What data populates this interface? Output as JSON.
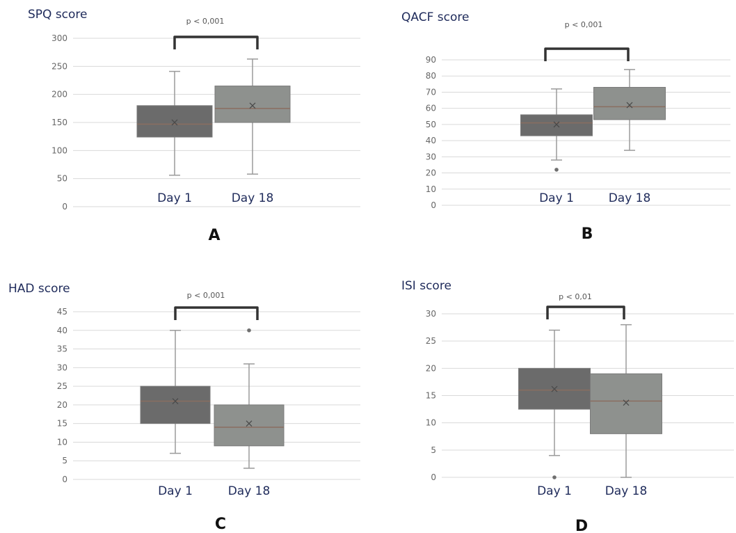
{
  "colors": {
    "day1_fill": "#6b6b6b",
    "day18_fill": "#8e918e",
    "whisker": "#9a9a9a",
    "median": "#8a6e60",
    "bracket": "#333333",
    "grid": "#d9d9d9",
    "text": "#1e2a5a"
  },
  "chart_data": [
    {
      "type": "box",
      "panel_label": "A",
      "title": "SPQ score",
      "significance": "p < 0,001",
      "y_ticks": [
        "0",
        "50",
        "100",
        "150",
        "200",
        "250",
        "300"
      ],
      "ylim": [
        0,
        300
      ],
      "categories": [
        "Day 1",
        "Day 18"
      ],
      "boxes": [
        {
          "name": "Day 1",
          "min": 56,
          "q1": 124,
          "median": 147,
          "q3": 180,
          "max": 241,
          "mean": 150,
          "outliers": []
        },
        {
          "name": "Day 18",
          "min": 58,
          "q1": 150,
          "median": 175,
          "q3": 215,
          "max": 263,
          "mean": 180,
          "outliers": []
        }
      ]
    },
    {
      "type": "box",
      "panel_label": "B",
      "title": "QACF score",
      "significance": "p < 0,001",
      "y_ticks": [
        "0",
        "10",
        "20",
        "30",
        "40",
        "50",
        "60",
        "70",
        "80",
        "90"
      ],
      "ylim": [
        0,
        90
      ],
      "categories": [
        "Day 1",
        "Day 18"
      ],
      "boxes": [
        {
          "name": "Day 1",
          "min": 28,
          "q1": 43,
          "median": 51,
          "q3": 56,
          "max": 72,
          "mean": 50,
          "outliers": [
            22
          ]
        },
        {
          "name": "Day 18",
          "min": 34,
          "q1": 53,
          "median": 61,
          "q3": 73,
          "max": 84,
          "mean": 62,
          "outliers": []
        }
      ]
    },
    {
      "type": "box",
      "panel_label": "C",
      "title": "HAD score",
      "significance": "p < 0,001",
      "y_ticks": [
        "0",
        "5",
        "10",
        "15",
        "20",
        "25",
        "30",
        "35",
        "40",
        "45"
      ],
      "ylim": [
        0,
        45
      ],
      "categories": [
        "Day 1",
        "Day 18"
      ],
      "boxes": [
        {
          "name": "Day 1",
          "min": 7,
          "q1": 15,
          "median": 21,
          "q3": 25,
          "max": 40,
          "mean": 21,
          "outliers": []
        },
        {
          "name": "Day 18",
          "min": 3,
          "q1": 9,
          "median": 14,
          "q3": 20,
          "max": 31,
          "mean": 15,
          "outliers": [
            40
          ]
        }
      ]
    },
    {
      "type": "box",
      "panel_label": "D",
      "title": "ISI score",
      "significance": "p < 0,01",
      "y_ticks": [
        "0",
        "5",
        "10",
        "15",
        "20",
        "25",
        "30"
      ],
      "ylim": [
        0,
        30
      ],
      "categories": [
        "Day 1",
        "Day 18"
      ],
      "boxes": [
        {
          "name": "Day 1",
          "min": 4,
          "q1": 12.5,
          "median": 16,
          "q3": 20,
          "max": 27,
          "mean": 16.2,
          "outliers": [
            0
          ]
        },
        {
          "name": "Day 18",
          "min": 0,
          "q1": 8,
          "median": 14,
          "q3": 19,
          "max": 28,
          "mean": 13.7,
          "outliers": []
        }
      ]
    }
  ]
}
